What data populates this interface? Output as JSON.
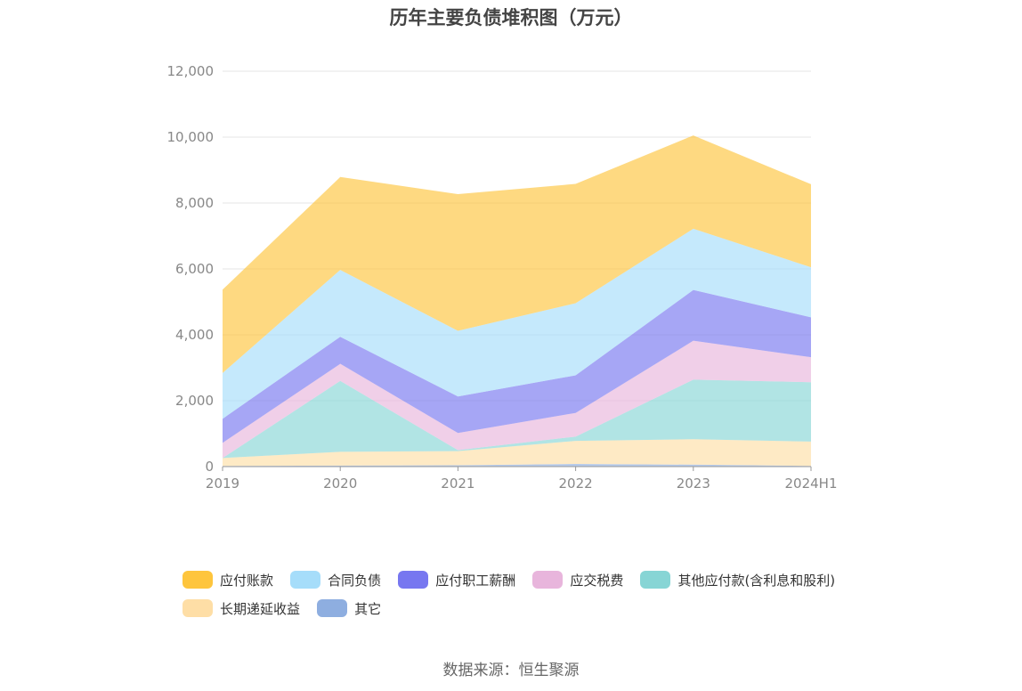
{
  "title": "历年主要负债堆积图（万元）",
  "source": "数据来源：恒生聚源",
  "chart_data": {
    "type": "area",
    "stacked": true,
    "title": "历年主要负债堆积图（万元）",
    "categories": [
      "2019",
      "2020",
      "2021",
      "2022",
      "2023",
      "2024H1"
    ],
    "ylim": [
      0,
      12000
    ],
    "yticks": [
      0,
      2000,
      4000,
      6000,
      8000,
      10000,
      12000
    ],
    "ytick_labels": [
      "0",
      "2,000",
      "4,000",
      "6,000",
      "8,000",
      "10,000",
      "12,000"
    ],
    "grid": true,
    "legend_position": "bottom",
    "series": [
      {
        "name": "其它",
        "color": "#8eaee0",
        "values": [
          20,
          30,
          40,
          80,
          60,
          20
        ]
      },
      {
        "name": "长期递延收益",
        "color": "#fedea6",
        "values": [
          240,
          420,
          430,
          700,
          770,
          740
        ]
      },
      {
        "name": "其他应付款(含利息和股利)",
        "color": "#87d5d5",
        "values": [
          0,
          2150,
          30,
          130,
          1810,
          1800
        ]
      },
      {
        "name": "应交税费",
        "color": "#e8b5dc",
        "values": [
          460,
          520,
          520,
          720,
          1180,
          760
        ]
      },
      {
        "name": "应付职工薪酬",
        "color": "#7777f0",
        "values": [
          730,
          820,
          1110,
          1140,
          1540,
          1210
        ]
      },
      {
        "name": "合同负债",
        "color": "#a6ddfa",
        "values": [
          1390,
          2030,
          1990,
          2190,
          1860,
          1520
        ]
      },
      {
        "name": "应付账款",
        "color": "#fec53d",
        "values": [
          2530,
          2820,
          4150,
          3620,
          2830,
          2520
        ]
      }
    ]
  },
  "legend": [
    {
      "label": "应付账款",
      "color": "#fec53d"
    },
    {
      "label": "合同负债",
      "color": "#a6ddfa"
    },
    {
      "label": "应付职工薪酬",
      "color": "#7777f0"
    },
    {
      "label": "应交税费",
      "color": "#e8b5dc"
    },
    {
      "label": "其他应付款(含利息和股利)",
      "color": "#87d5d5"
    },
    {
      "label": "长期递延收益",
      "color": "#fedea6"
    },
    {
      "label": "其它",
      "color": "#8eaee0"
    }
  ]
}
